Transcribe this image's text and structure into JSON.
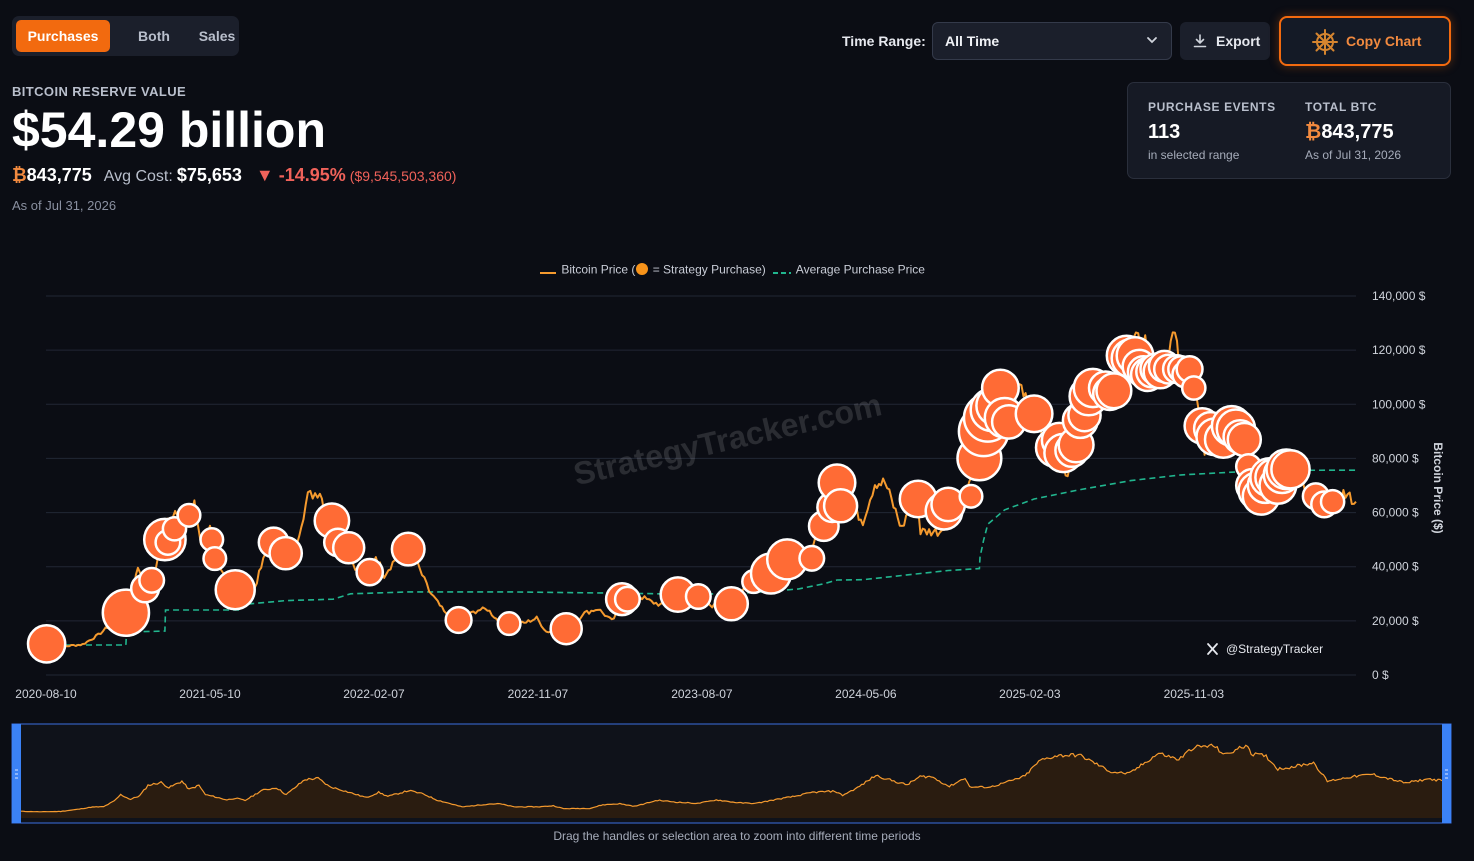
{
  "tabs": [
    {
      "label": "Purchases",
      "active": true
    },
    {
      "label": "Both",
      "active": false
    },
    {
      "label": "Sales",
      "active": false
    }
  ],
  "toolbar": {
    "time_range_label": "Time Range:",
    "time_range_value": "All Time",
    "export_label": "Export",
    "copy_label": "Copy Chart"
  },
  "summary": {
    "reserve_label": "BITCOIN RESERVE VALUE",
    "reserve_value": "$54.29 billion",
    "btc_symbol": "₿",
    "holdings": "843,775",
    "avg_cost_label": "Avg Cost:",
    "avg_cost_value": "$75,653",
    "change_arrow": "▼",
    "change_pct": "-14.95%",
    "change_abs": "($9,545,503,360)",
    "as_of": "As of Jul 31, 2026"
  },
  "stats_card": {
    "events_label": "PURCHASE EVENTS",
    "events_value": "113",
    "events_sub": "in selected range",
    "total_label": "TOTAL BTC",
    "total_symbol": "₿",
    "total_value": "843,775",
    "total_sub": "As of Jul 31, 2026"
  },
  "colors": {
    "accent": "#f26a0f",
    "price_line": "#f59a2e",
    "purchase_dot": "#ff6b35",
    "avg_line": "#21b58e",
    "negative": "#f0625a"
  },
  "watermark": "StrategyTracker.com",
  "credit": "@StrategyTracker",
  "navigator_hint": "Drag the handles or selection area to zoom into different time periods",
  "chart_data": {
    "type": "line",
    "legend": {
      "placement": "top-center",
      "price_before": "Bitcoin Price (",
      "price_after": " = Strategy Purchase)",
      "avg": "Average Purchase Price"
    },
    "ylabel": "Bitcoin Price ($)",
    "ylim": [
      0,
      140000
    ],
    "y_ticks": [
      0,
      20000,
      40000,
      60000,
      80000,
      100000,
      120000,
      140000
    ],
    "y_tick_labels": [
      "0 $",
      "20,000 $",
      "40,000 $",
      "60,000 $",
      "80,000 $",
      "100,000 $",
      "120,000 $",
      "140,000 $"
    ],
    "xlim": [
      "2020-08-10",
      "2026-07-31"
    ],
    "x_tick_labels": [
      "2020-08-10",
      "2021-05-10",
      "2022-02-07",
      "2022-11-07",
      "2023-08-07",
      "2024-05-06",
      "2025-02-03",
      "2025-11-03"
    ],
    "grid": true,
    "series": [
      {
        "name": "Bitcoin Price",
        "points": [
          [
            "2020-08-10",
            11500
          ],
          [
            "2020-09-10",
            10600
          ],
          [
            "2020-10-10",
            11300
          ],
          [
            "2020-11-05",
            14800
          ],
          [
            "2020-11-25",
            18500
          ],
          [
            "2020-12-15",
            19400
          ],
          [
            "2020-12-31",
            29000
          ],
          [
            "2021-01-10",
            40000
          ],
          [
            "2021-01-25",
            32000
          ],
          [
            "2021-02-08",
            38000
          ],
          [
            "2021-02-21",
            56000
          ],
          [
            "2021-03-13",
            61000
          ],
          [
            "2021-03-25",
            52000
          ],
          [
            "2021-04-14",
            63000
          ],
          [
            "2021-04-25",
            49000
          ],
          [
            "2021-05-10",
            56000
          ],
          [
            "2021-05-20",
            40000
          ],
          [
            "2021-06-01",
            37000
          ],
          [
            "2021-06-22",
            31000
          ],
          [
            "2021-07-05",
            34000
          ],
          [
            "2021-07-20",
            30000
          ],
          [
            "2021-08-14",
            47000
          ],
          [
            "2021-09-06",
            52000
          ],
          [
            "2021-09-21",
            40000
          ],
          [
            "2021-10-20",
            66000
          ],
          [
            "2021-11-09",
            68000
          ],
          [
            "2021-11-26",
            54000
          ],
          [
            "2021-12-15",
            48000
          ],
          [
            "2022-01-22",
            35000
          ],
          [
            "2022-02-10",
            44000
          ],
          [
            "2022-02-24",
            37000
          ],
          [
            "2022-03-28",
            47000
          ],
          [
            "2022-04-20",
            41000
          ],
          [
            "2022-05-10",
            31000
          ],
          [
            "2022-06-18",
            19000
          ],
          [
            "2022-07-30",
            24000
          ],
          [
            "2022-08-15",
            24300
          ],
          [
            "2022-09-06",
            19000
          ],
          [
            "2022-10-15",
            19200
          ],
          [
            "2022-11-05",
            21000
          ],
          [
            "2022-11-21",
            16000
          ],
          [
            "2022-12-31",
            16500
          ],
          [
            "2023-01-20",
            22600
          ],
          [
            "2023-02-15",
            24500
          ],
          [
            "2023-03-10",
            20000
          ],
          [
            "2023-04-14",
            30400
          ],
          [
            "2023-05-15",
            27000
          ],
          [
            "2023-06-15",
            25000
          ],
          [
            "2023-07-13",
            31000
          ],
          [
            "2023-08-17",
            26000
          ],
          [
            "2023-09-11",
            25000
          ],
          [
            "2023-10-24",
            34000
          ],
          [
            "2023-11-10",
            37000
          ],
          [
            "2023-12-08",
            44000
          ],
          [
            "2024-01-11",
            46000
          ],
          [
            "2024-01-23",
            39000
          ],
          [
            "2024-02-15",
            52000
          ],
          [
            "2024-03-14",
            73000
          ],
          [
            "2024-04-17",
            61000
          ],
          [
            "2024-05-01",
            57000
          ],
          [
            "2024-05-21",
            71000
          ],
          [
            "2024-06-07",
            71000
          ],
          [
            "2024-07-05",
            54000
          ],
          [
            "2024-07-29",
            69000
          ],
          [
            "2024-08-05",
            53000
          ],
          [
            "2024-09-06",
            53000
          ],
          [
            "2024-10-14",
            66000
          ],
          [
            "2024-10-29",
            72000
          ],
          [
            "2024-11-13",
            90000
          ],
          [
            "2024-11-22",
            99000
          ],
          [
            "2024-12-17",
            107000
          ],
          [
            "2025-01-20",
            108000
          ],
          [
            "2025-02-10",
            96000
          ],
          [
            "2025-03-10",
            79000
          ],
          [
            "2025-04-07",
            76000
          ],
          [
            "2025-05-22",
            111000
          ],
          [
            "2025-06-22",
            100000
          ],
          [
            "2025-07-14",
            121000
          ],
          [
            "2025-08-14",
            124000
          ],
          [
            "2025-09-01",
            108000
          ],
          [
            "2025-10-06",
            126000
          ],
          [
            "2025-10-11",
            110000
          ],
          [
            "2025-11-03",
            106000
          ],
          [
            "2025-11-21",
            84000
          ],
          [
            "2025-12-15",
            88000
          ],
          [
            "2026-01-15",
            95000
          ],
          [
            "2026-02-05",
            63000
          ],
          [
            "2026-03-10",
            70000
          ],
          [
            "2026-04-15",
            75000
          ],
          [
            "2026-05-15",
            66000
          ],
          [
            "2026-06-05",
            60000
          ],
          [
            "2026-07-10",
            67000
          ],
          [
            "2026-07-31",
            64000
          ]
        ]
      },
      {
        "name": "Average Purchase Price",
        "points": [
          [
            "2020-08-10",
            11100
          ],
          [
            "2020-12-21",
            11100
          ],
          [
            "2020-12-22",
            15900
          ],
          [
            "2021-02-24",
            16200
          ],
          [
            "2021-02-25",
            24000
          ],
          [
            "2021-07-01",
            24000
          ],
          [
            "2021-07-02",
            26000
          ],
          [
            "2021-09-13",
            27500
          ],
          [
            "2021-12-01",
            28000
          ],
          [
            "2021-12-30",
            30000
          ],
          [
            "2022-02-01",
            30200
          ],
          [
            "2022-04-05",
            30700
          ],
          [
            "2022-09-20",
            30700
          ],
          [
            "2023-03-27",
            30200
          ],
          [
            "2023-06-28",
            29900
          ],
          [
            "2023-09-25",
            30000
          ],
          [
            "2023-11-30",
            30900
          ],
          [
            "2024-01-15",
            31800
          ],
          [
            "2024-02-26",
            33700
          ],
          [
            "2024-03-19",
            35100
          ],
          [
            "2024-05-01",
            35200
          ],
          [
            "2024-09-20",
            38600
          ],
          [
            "2024-11-11",
            39300
          ],
          [
            "2024-11-12",
            43500
          ],
          [
            "2024-11-18",
            49800
          ],
          [
            "2024-11-25",
            55700
          ],
          [
            "2024-12-23",
            61000
          ],
          [
            "2025-02-10",
            65000
          ],
          [
            "2025-04-28",
            68500
          ],
          [
            "2025-07-21",
            71800
          ],
          [
            "2025-10-13",
            73900
          ],
          [
            "2026-01-05",
            74900
          ],
          [
            "2026-03-15",
            75600
          ],
          [
            "2026-07-31",
            75653
          ]
        ]
      },
      {
        "name": "Strategy Purchase",
        "points": [
          [
            "2020-08-11",
            11500,
            42
          ],
          [
            "2020-12-21",
            23000,
            74
          ],
          [
            "2021-01-22",
            32000,
            18
          ],
          [
            "2021-02-02",
            35000,
            12
          ],
          [
            "2021-02-24",
            50000,
            56
          ],
          [
            "2021-03-01",
            49000,
            12
          ],
          [
            "2021-03-12",
            54000,
            10
          ],
          [
            "2021-04-05",
            59000,
            9
          ],
          [
            "2021-05-13",
            50000,
            9
          ],
          [
            "2021-05-18",
            43000,
            9
          ],
          [
            "2021-06-21",
            31500,
            48
          ],
          [
            "2021-08-24",
            49000,
            22
          ],
          [
            "2021-09-13",
            45000,
            28
          ],
          [
            "2021-11-29",
            57000,
            34
          ],
          [
            "2021-12-09",
            49000,
            17
          ],
          [
            "2021-12-27",
            47000,
            25
          ],
          [
            "2022-01-31",
            38000,
            15
          ],
          [
            "2022-04-05",
            46500,
            29
          ],
          [
            "2022-06-28",
            20300,
            14
          ],
          [
            "2022-09-20",
            19000,
            9
          ],
          [
            "2022-12-24",
            17100,
            25
          ],
          [
            "2023-03-27",
            28000,
            27
          ],
          [
            "2023-04-05",
            28000,
            12
          ],
          [
            "2023-06-28",
            29700,
            34
          ],
          [
            "2023-08-01",
            29000,
            12
          ],
          [
            "2023-09-25",
            26300,
            30
          ],
          [
            "2023-11-01",
            34500,
            9
          ],
          [
            "2023-11-30",
            37500,
            51
          ],
          [
            "2023-12-27",
            42700,
            51
          ],
          [
            "2024-02-06",
            43100,
            12
          ],
          [
            "2024-02-26",
            55000,
            22
          ],
          [
            "2024-03-11",
            62000,
            22
          ],
          [
            "2024-03-19",
            71000,
            40
          ],
          [
            "2024-03-25",
            62500,
            30
          ],
          [
            "2024-08-01",
            65000,
            40
          ],
          [
            "2024-09-13",
            60500,
            40
          ],
          [
            "2024-09-20",
            63000,
            31
          ],
          [
            "2024-10-28",
            66000,
            9
          ],
          [
            "2024-11-11",
            80000,
            65
          ],
          [
            "2024-11-18",
            90000,
            88
          ],
          [
            "2024-11-25",
            95000,
            80
          ],
          [
            "2024-12-02",
            98000,
            60
          ],
          [
            "2024-12-09",
            99500,
            50
          ],
          [
            "2024-12-16",
            106000,
            40
          ],
          [
            "2024-12-23",
            95000,
            50
          ],
          [
            "2024-12-30",
            93500,
            31
          ],
          [
            "2025-02-10",
            96500,
            40
          ],
          [
            "2025-03-17",
            84000,
            45
          ],
          [
            "2025-03-24",
            86700,
            35
          ],
          [
            "2025-03-31",
            82000,
            45
          ],
          [
            "2025-04-14",
            83000,
            30
          ],
          [
            "2025-04-21",
            85000,
            35
          ],
          [
            "2025-04-28",
            94000,
            35
          ],
          [
            "2025-05-05",
            96000,
            28
          ],
          [
            "2025-05-12",
            103000,
            45
          ],
          [
            "2025-05-19",
            106000,
            45
          ],
          [
            "2025-06-09",
            106000,
            30
          ],
          [
            "2025-06-16",
            104000,
            30
          ],
          [
            "2025-06-23",
            105000,
            35
          ],
          [
            "2025-07-14",
            118000,
            50
          ],
          [
            "2025-07-21",
            117000,
            45
          ],
          [
            "2025-07-28",
            118000,
            40
          ],
          [
            "2025-08-04",
            114000,
            30
          ],
          [
            "2025-08-11",
            112000,
            25
          ],
          [
            "2025-08-18",
            111000,
            30
          ],
          [
            "2025-08-25",
            112000,
            25
          ],
          [
            "2025-09-01",
            113000,
            25
          ],
          [
            "2025-09-08",
            112000,
            30
          ],
          [
            "2025-09-15",
            114000,
            25
          ],
          [
            "2025-09-22",
            113000,
            20
          ],
          [
            "2025-10-06",
            113000,
            18
          ],
          [
            "2025-10-13",
            113000,
            14
          ],
          [
            "2025-10-20",
            111000,
            14
          ],
          [
            "2025-10-27",
            113000,
            14
          ],
          [
            "2025-11-03",
            106000,
            10
          ],
          [
            "2025-11-17",
            92000,
            36
          ],
          [
            "2025-12-01",
            91000,
            30
          ],
          [
            "2025-12-08",
            88000,
            40
          ],
          [
            "2025-12-22",
            87000,
            40
          ],
          [
            "2026-01-05",
            92000,
            50
          ],
          [
            "2026-01-12",
            91000,
            45
          ],
          [
            "2026-01-19",
            88000,
            30
          ],
          [
            "2026-01-26",
            87000,
            30
          ],
          [
            "2026-02-02",
            77000,
            12
          ],
          [
            "2026-02-09",
            70000,
            30
          ],
          [
            "2026-02-16",
            68000,
            40
          ],
          [
            "2026-02-23",
            66000,
            40
          ],
          [
            "2026-03-02",
            70000,
            35
          ],
          [
            "2026-03-09",
            73000,
            45
          ],
          [
            "2026-03-16",
            73000,
            40
          ],
          [
            "2026-03-23",
            70000,
            40
          ],
          [
            "2026-03-30",
            74000,
            40
          ],
          [
            "2026-04-06",
            76000,
            50
          ],
          [
            "2026-04-13",
            76000,
            45
          ],
          [
            "2026-05-25",
            66000,
            14
          ],
          [
            "2026-06-08",
            63000,
            14
          ],
          [
            "2026-06-22",
            64000,
            10
          ]
        ]
      }
    ]
  }
}
